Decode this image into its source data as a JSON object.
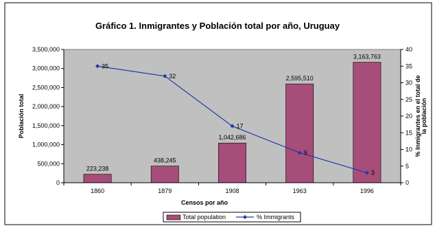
{
  "chart_data": {
    "type": "bar",
    "title": "Gráfico 1. Inmigrantes y Población total por año, Uruguay",
    "xlabel": "Censos por año",
    "ylabel": "Población total",
    "y2label_line1": "% Inmigrantes en el total de",
    "y2label_line2": "la población",
    "categories": [
      "1860",
      "1879",
      "1908",
      "1963",
      "1996"
    ],
    "ylim": [
      0,
      3500000
    ],
    "yticks": [
      "0",
      "500,000",
      "1,000,000",
      "1,500,000",
      "2,000,000",
      "2,500,000",
      "3,000,000",
      "3,500,000"
    ],
    "ytick_values": [
      0,
      500000,
      1000000,
      1500000,
      2000000,
      2500000,
      3000000,
      3500000
    ],
    "y2lim": [
      0,
      40
    ],
    "y2ticks": [
      "0",
      "5",
      "10",
      "15",
      "20",
      "25",
      "30",
      "35",
      "40"
    ],
    "y2tick_values": [
      0,
      5,
      10,
      15,
      20,
      25,
      30,
      35,
      40
    ],
    "grid": false,
    "legend_position": "bottom",
    "series": [
      {
        "name": "Total population",
        "type": "bar",
        "axis": "left",
        "color": "#a64d79",
        "values": [
          223238,
          438245,
          1042686,
          2595510,
          3163763
        ],
        "labels": [
          "223,238",
          "438,245",
          "1,042,686",
          "2,595,510",
          "3,163,763"
        ]
      },
      {
        "name": "% Immigrants",
        "type": "line",
        "axis": "right",
        "color": "#1f3aa6",
        "marker": "diamond",
        "values": [
          35,
          32,
          17,
          9,
          3
        ],
        "labels": [
          "35",
          "32",
          "17",
          "9",
          "3"
        ]
      }
    ],
    "plot_area_color": "#c0c0c0"
  }
}
